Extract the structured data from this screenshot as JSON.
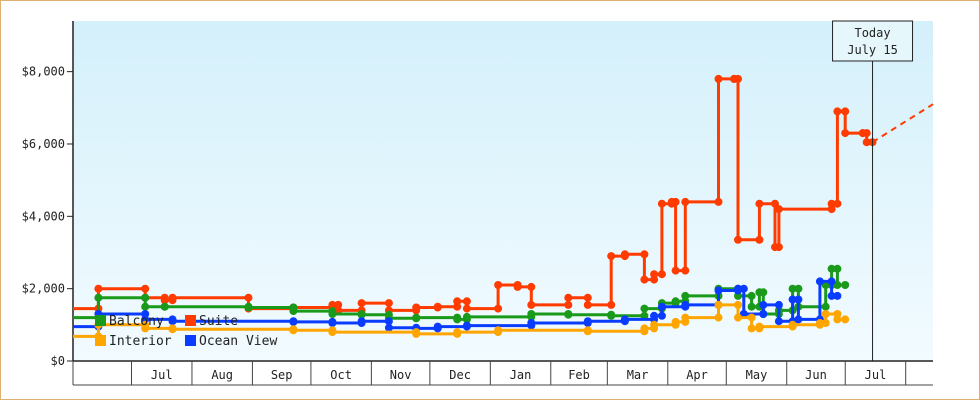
{
  "chart_data": {
    "type": "line",
    "title": "",
    "xlabel": "",
    "ylabel": "",
    "ylim": [
      0,
      9400
    ],
    "y_ticks": [
      0,
      2000,
      4000,
      6000,
      8000
    ],
    "y_tick_labels": [
      "$0",
      "$2,000",
      "$4,000",
      "$6,000",
      "$8,000"
    ],
    "x_ticks": [
      "Jul",
      "Aug",
      "Sep",
      "Oct",
      "Nov",
      "Dec",
      "Jan",
      "Feb",
      "Mar",
      "Apr",
      "May",
      "Jun",
      "Jul"
    ],
    "x_domain": [
      "2023-06-01",
      "2024-08-15"
    ],
    "today": {
      "label": "Today",
      "date_label": "July 15",
      "date": "2024-07-15"
    },
    "legend_placement": "bottom-left",
    "series": [
      {
        "name": "Suite",
        "color": "#ff3b00",
        "points": [
          [
            "2023-06-01",
            1450
          ],
          [
            "2023-06-14",
            1450
          ],
          [
            "2023-06-14",
            2000
          ],
          [
            "2023-07-08",
            2000
          ],
          [
            "2023-07-08",
            1750
          ],
          [
            "2023-07-18",
            1750
          ],
          [
            "2023-07-18",
            1680
          ],
          [
            "2023-07-22",
            1680
          ],
          [
            "2023-07-22",
            1750
          ],
          [
            "2023-08-30",
            1750
          ],
          [
            "2023-08-30",
            1450
          ],
          [
            "2023-09-22",
            1450
          ],
          [
            "2023-09-22",
            1480
          ],
          [
            "2023-10-12",
            1480
          ],
          [
            "2023-10-12",
            1550
          ],
          [
            "2023-10-15",
            1550
          ],
          [
            "2023-10-15",
            1400
          ],
          [
            "2023-10-27",
            1400
          ],
          [
            "2023-10-27",
            1600
          ],
          [
            "2023-11-10",
            1600
          ],
          [
            "2023-11-10",
            1400
          ],
          [
            "2023-11-24",
            1400
          ],
          [
            "2023-11-24",
            1480
          ],
          [
            "2023-12-05",
            1480
          ],
          [
            "2023-12-05",
            1500
          ],
          [
            "2023-12-15",
            1500
          ],
          [
            "2023-12-15",
            1650
          ],
          [
            "2023-12-20",
            1650
          ],
          [
            "2023-12-20",
            1450
          ],
          [
            "2024-01-05",
            1450
          ],
          [
            "2024-01-05",
            2100
          ],
          [
            "2024-01-15",
            2100
          ],
          [
            "2024-01-15",
            2050
          ],
          [
            "2024-01-22",
            2050
          ],
          [
            "2024-01-22",
            1550
          ],
          [
            "2024-02-10",
            1550
          ],
          [
            "2024-02-10",
            1750
          ],
          [
            "2024-02-20",
            1750
          ],
          [
            "2024-02-20",
            1550
          ],
          [
            "2024-03-03",
            1550
          ],
          [
            "2024-03-03",
            2900
          ],
          [
            "2024-03-10",
            2900
          ],
          [
            "2024-03-10",
            2950
          ],
          [
            "2024-03-20",
            2950
          ],
          [
            "2024-03-20",
            2250
          ],
          [
            "2024-03-25",
            2250
          ],
          [
            "2024-03-25",
            2400
          ],
          [
            "2024-03-29",
            2400
          ],
          [
            "2024-03-29",
            4350
          ],
          [
            "2024-04-03",
            4350
          ],
          [
            "2024-04-03",
            4400
          ],
          [
            "2024-04-05",
            4400
          ],
          [
            "2024-04-05",
            2500
          ],
          [
            "2024-04-10",
            2500
          ],
          [
            "2024-04-10",
            4400
          ],
          [
            "2024-04-27",
            4400
          ],
          [
            "2024-04-27",
            7800
          ],
          [
            "2024-05-05",
            7800
          ],
          [
            "2024-05-05",
            7800
          ],
          [
            "2024-05-07",
            7800
          ],
          [
            "2024-05-07",
            3350
          ],
          [
            "2024-05-18",
            3350
          ],
          [
            "2024-05-18",
            4350
          ],
          [
            "2024-05-26",
            4350
          ],
          [
            "2024-05-26",
            3150
          ],
          [
            "2024-05-28",
            3150
          ],
          [
            "2024-05-28",
            4200
          ],
          [
            "2024-06-24",
            4200
          ],
          [
            "2024-06-24",
            4350
          ],
          [
            "2024-06-27",
            4350
          ],
          [
            "2024-06-27",
            6900
          ],
          [
            "2024-07-01",
            6900
          ],
          [
            "2024-07-01",
            6300
          ],
          [
            "2024-07-10",
            6300
          ],
          [
            "2024-07-10",
            6300
          ],
          [
            "2024-07-12",
            6300
          ],
          [
            "2024-07-12",
            6050
          ],
          [
            "2024-07-15",
            6050
          ]
        ],
        "forecast": [
          [
            "2024-07-15",
            6050
          ],
          [
            "2024-08-15",
            7100
          ]
        ]
      },
      {
        "name": "Balcony",
        "color": "#1a9a1a",
        "points": [
          [
            "2023-06-01",
            1200
          ],
          [
            "2023-06-14",
            1200
          ],
          [
            "2023-06-14",
            1750
          ],
          [
            "2023-07-08",
            1750
          ],
          [
            "2023-07-08",
            1500
          ],
          [
            "2023-07-18",
            1500
          ],
          [
            "2023-07-18",
            1500
          ],
          [
            "2023-08-30",
            1500
          ],
          [
            "2023-08-30",
            1480
          ],
          [
            "2023-09-22",
            1480
          ],
          [
            "2023-09-22",
            1380
          ],
          [
            "2023-10-12",
            1380
          ],
          [
            "2023-10-12",
            1300
          ],
          [
            "2023-10-27",
            1300
          ],
          [
            "2023-10-27",
            1280
          ],
          [
            "2023-11-10",
            1280
          ],
          [
            "2023-11-10",
            1180
          ],
          [
            "2023-11-24",
            1180
          ],
          [
            "2023-11-24",
            1200
          ],
          [
            "2023-12-15",
            1200
          ],
          [
            "2023-12-15",
            1150
          ],
          [
            "2023-12-20",
            1150
          ],
          [
            "2023-12-20",
            1220
          ],
          [
            "2024-01-22",
            1220
          ],
          [
            "2024-01-22",
            1300
          ],
          [
            "2024-02-10",
            1300
          ],
          [
            "2024-02-10",
            1280
          ],
          [
            "2024-03-03",
            1280
          ],
          [
            "2024-03-03",
            1250
          ],
          [
            "2024-03-20",
            1250
          ],
          [
            "2024-03-20",
            1450
          ],
          [
            "2024-03-29",
            1450
          ],
          [
            "2024-03-29",
            1600
          ],
          [
            "2024-04-05",
            1600
          ],
          [
            "2024-04-05",
            1650
          ],
          [
            "2024-04-10",
            1650
          ],
          [
            "2024-04-10",
            1800
          ],
          [
            "2024-04-27",
            1800
          ],
          [
            "2024-04-27",
            2000
          ],
          [
            "2024-05-07",
            2000
          ],
          [
            "2024-05-07",
            1800
          ],
          [
            "2024-05-14",
            1800
          ],
          [
            "2024-05-14",
            1500
          ],
          [
            "2024-05-18",
            1500
          ],
          [
            "2024-05-18",
            1900
          ],
          [
            "2024-05-20",
            1900
          ],
          [
            "2024-05-20",
            1300
          ],
          [
            "2024-05-28",
            1300
          ],
          [
            "2024-05-28",
            1400
          ],
          [
            "2024-06-04",
            1400
          ],
          [
            "2024-06-04",
            2000
          ],
          [
            "2024-06-07",
            2000
          ],
          [
            "2024-06-07",
            1500
          ],
          [
            "2024-06-21",
            1500
          ],
          [
            "2024-06-21",
            2100
          ],
          [
            "2024-06-24",
            2100
          ],
          [
            "2024-06-24",
            2550
          ],
          [
            "2024-06-27",
            2550
          ],
          [
            "2024-06-27",
            2100
          ],
          [
            "2024-07-01",
            2100
          ]
        ]
      },
      {
        "name": "Ocean View",
        "color": "#0a3cff",
        "points": [
          [
            "2023-06-01",
            950
          ],
          [
            "2023-06-14",
            950
          ],
          [
            "2023-06-14",
            1300
          ],
          [
            "2023-07-08",
            1300
          ],
          [
            "2023-07-08",
            1150
          ],
          [
            "2023-07-22",
            1150
          ],
          [
            "2023-07-22",
            1100
          ],
          [
            "2023-09-22",
            1100
          ],
          [
            "2023-09-22",
            1080
          ],
          [
            "2023-10-12",
            1080
          ],
          [
            "2023-10-12",
            1050
          ],
          [
            "2023-10-27",
            1050
          ],
          [
            "2023-10-27",
            1100
          ],
          [
            "2023-11-10",
            1100
          ],
          [
            "2023-11-10",
            920
          ],
          [
            "2023-11-24",
            920
          ],
          [
            "2023-11-24",
            900
          ],
          [
            "2023-12-05",
            900
          ],
          [
            "2023-12-05",
            950
          ],
          [
            "2023-12-20",
            950
          ],
          [
            "2023-12-20",
            980
          ],
          [
            "2024-01-22",
            980
          ],
          [
            "2024-01-22",
            1050
          ],
          [
            "2024-02-20",
            1050
          ],
          [
            "2024-02-20",
            1100
          ],
          [
            "2024-03-10",
            1100
          ],
          [
            "2024-03-10",
            1150
          ],
          [
            "2024-03-25",
            1150
          ],
          [
            "2024-03-25",
            1250
          ],
          [
            "2024-03-29",
            1250
          ],
          [
            "2024-03-29",
            1500
          ],
          [
            "2024-04-10",
            1500
          ],
          [
            "2024-04-10",
            1550
          ],
          [
            "2024-04-27",
            1550
          ],
          [
            "2024-04-27",
            1950
          ],
          [
            "2024-05-07",
            1950
          ],
          [
            "2024-05-07",
            2000
          ],
          [
            "2024-05-10",
            2000
          ],
          [
            "2024-05-10",
            1300
          ],
          [
            "2024-05-20",
            1300
          ],
          [
            "2024-05-20",
            1550
          ],
          [
            "2024-05-28",
            1550
          ],
          [
            "2024-05-28",
            1100
          ],
          [
            "2024-06-04",
            1100
          ],
          [
            "2024-06-04",
            1700
          ],
          [
            "2024-06-07",
            1700
          ],
          [
            "2024-06-07",
            1150
          ],
          [
            "2024-06-18",
            1150
          ],
          [
            "2024-06-18",
            2200
          ],
          [
            "2024-06-24",
            2200
          ],
          [
            "2024-06-24",
            1800
          ],
          [
            "2024-06-27",
            1800
          ]
        ]
      },
      {
        "name": "Interior",
        "color": "#ffa500",
        "points": [
          [
            "2023-06-01",
            680
          ],
          [
            "2023-06-14",
            680
          ],
          [
            "2023-06-14",
            1000
          ],
          [
            "2023-07-08",
            1000
          ],
          [
            "2023-07-08",
            900
          ],
          [
            "2023-07-22",
            900
          ],
          [
            "2023-07-22",
            880
          ],
          [
            "2023-09-22",
            880
          ],
          [
            "2023-09-22",
            850
          ],
          [
            "2023-10-12",
            850
          ],
          [
            "2023-10-12",
            800
          ],
          [
            "2023-11-24",
            800
          ],
          [
            "2023-11-24",
            750
          ],
          [
            "2023-12-15",
            750
          ],
          [
            "2023-12-15",
            800
          ],
          [
            "2024-01-05",
            800
          ],
          [
            "2024-01-05",
            850
          ],
          [
            "2024-02-20",
            850
          ],
          [
            "2024-02-20",
            820
          ],
          [
            "2024-03-20",
            820
          ],
          [
            "2024-03-20",
            900
          ],
          [
            "2024-03-25",
            900
          ],
          [
            "2024-03-25",
            1000
          ],
          [
            "2024-04-05",
            1000
          ],
          [
            "2024-04-05",
            1080
          ],
          [
            "2024-04-10",
            1080
          ],
          [
            "2024-04-10",
            1200
          ],
          [
            "2024-04-27",
            1200
          ],
          [
            "2024-04-27",
            1550
          ],
          [
            "2024-05-07",
            1550
          ],
          [
            "2024-05-07",
            1200
          ],
          [
            "2024-05-14",
            1200
          ],
          [
            "2024-05-14",
            900
          ],
          [
            "2024-05-18",
            900
          ],
          [
            "2024-05-18",
            950
          ],
          [
            "2024-06-04",
            950
          ],
          [
            "2024-06-04",
            1000
          ],
          [
            "2024-06-18",
            1000
          ],
          [
            "2024-06-18",
            1050
          ],
          [
            "2024-06-21",
            1050
          ],
          [
            "2024-06-21",
            1300
          ],
          [
            "2024-06-27",
            1300
          ],
          [
            "2024-06-27",
            1150
          ],
          [
            "2024-07-01",
            1150
          ]
        ]
      }
    ]
  }
}
